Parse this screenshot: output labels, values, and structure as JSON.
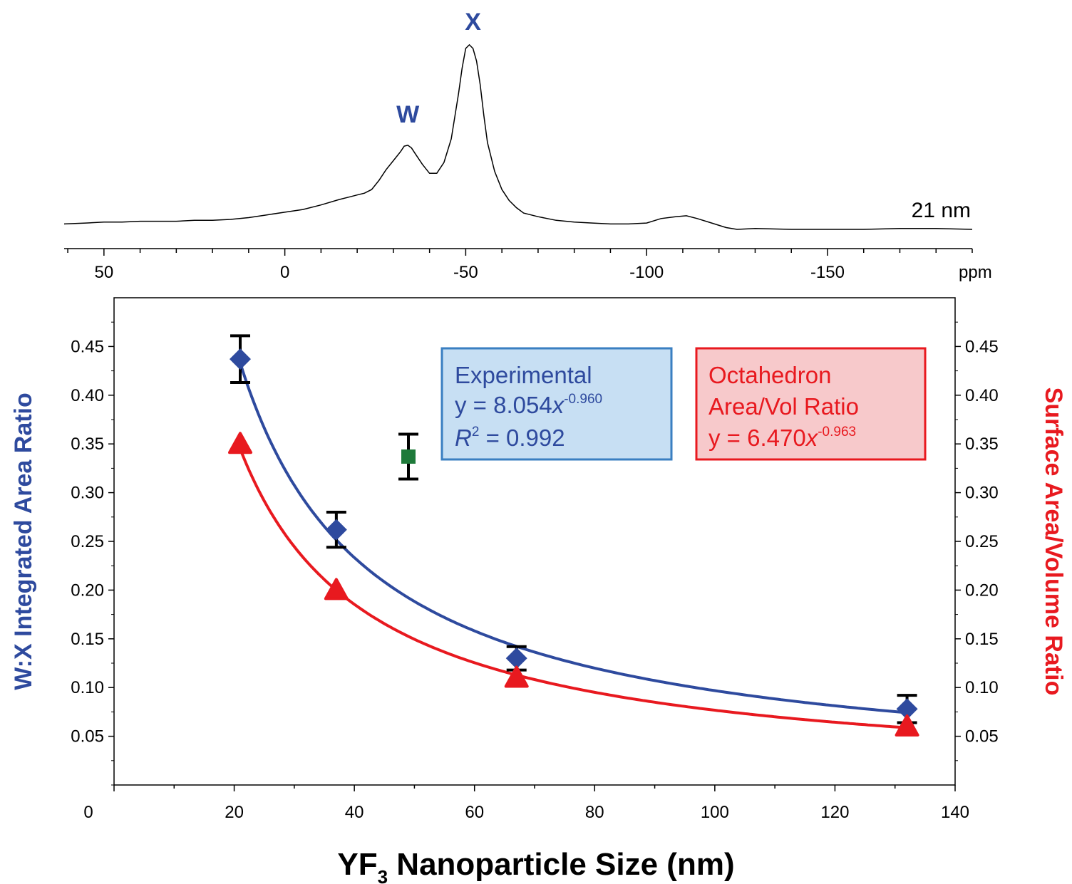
{
  "chart_data": [
    {
      "type": "line",
      "panel": "spectrum",
      "peak_labels": [
        {
          "text": "W",
          "x": -34
        },
        {
          "text": "X",
          "x": -52
        }
      ],
      "sample_label": "21 nm",
      "xlabel": "ppm",
      "xlim": [
        61,
        -190
      ],
      "x_ticks": [
        50,
        0,
        -50,
        -100,
        -150
      ],
      "x_tick_labels": [
        "50",
        "0",
        "-50",
        "-100",
        "-150"
      ],
      "spectrum": {
        "x": [
          61,
          55,
          50,
          45,
          40,
          35,
          30,
          25,
          20,
          15,
          10,
          5,
          0,
          -5,
          -10,
          -15,
          -18,
          -20,
          -22,
          -24,
          -26,
          -28,
          -30,
          -32,
          -33,
          -34,
          -35,
          -36,
          -38,
          -40,
          -42,
          -44,
          -46,
          -48,
          -49,
          -50,
          -51,
          -52,
          -53,
          -54,
          -55,
          -56,
          -58,
          -60,
          -62,
          -64,
          -66,
          -70,
          -75,
          -80,
          -85,
          -90,
          -95,
          -100,
          -104,
          -108,
          -111,
          -114,
          -118,
          -122,
          -125,
          -130,
          -140,
          -150,
          -160,
          -170,
          -180,
          -190
        ],
        "y": [
          0.03,
          0.035,
          0.04,
          0.04,
          0.045,
          0.045,
          0.045,
          0.05,
          0.05,
          0.055,
          0.065,
          0.08,
          0.095,
          0.11,
          0.135,
          0.165,
          0.18,
          0.19,
          0.2,
          0.22,
          0.27,
          0.33,
          0.38,
          0.43,
          0.46,
          0.465,
          0.45,
          0.42,
          0.36,
          0.31,
          0.31,
          0.37,
          0.5,
          0.75,
          0.89,
          1.0,
          1.02,
          1.0,
          0.93,
          0.8,
          0.63,
          0.48,
          0.32,
          0.22,
          0.16,
          0.12,
          0.09,
          0.07,
          0.05,
          0.04,
          0.035,
          0.03,
          0.03,
          0.035,
          0.06,
          0.07,
          0.075,
          0.06,
          0.035,
          0.01,
          0.0,
          0.005,
          0.0,
          0.0,
          0.0,
          0.005,
          0.005,
          0.0
        ]
      }
    },
    {
      "type": "scatter",
      "panel": "main",
      "xlabel": "YF",
      "xlabel_sub": "3",
      "xlabel_rest": " Nanoparticle Size (nm)",
      "ylabel_left": "W:X Integrated Area Ratio",
      "ylabel_right": "Surface Area/Volume Ratio",
      "xlim": [
        0,
        140
      ],
      "ylim": [
        0,
        0.5
      ],
      "x_ticks": [
        0,
        20,
        40,
        60,
        80,
        100,
        120,
        140
      ],
      "x_tick_labels": [
        "0",
        "20",
        "40",
        "60",
        "80",
        "100",
        "120",
        "140"
      ],
      "y_ticks": [
        0.05,
        0.1,
        0.15,
        0.2,
        0.25,
        0.3,
        0.35,
        0.4,
        0.45
      ],
      "y_tick_labels": [
        "0.05",
        "0.10",
        "0.15",
        "0.20",
        "0.25",
        "0.30",
        "0.35",
        "0.40",
        "0.45"
      ],
      "grid": false,
      "series": [
        {
          "color": "#2e4a9e",
          "marker": "diamond",
          "x": [
            21,
            37,
            67,
            132
          ],
          "y": [
            0.437,
            0.262,
            0.13,
            0.078
          ],
          "err": [
            0.024,
            0.018,
            0.012,
            0.014
          ],
          "fit": {
            "a": 8.054,
            "b": -0.96
          }
        },
        {
          "color": "#e8191f",
          "marker": "triangle",
          "x": [
            21,
            37,
            67,
            132
          ],
          "y": [
            0.35,
            0.2,
            0.11,
            0.06
          ],
          "fit": {
            "a": 6.47,
            "b": -0.963
          }
        },
        {
          "color": "#1e7a3a",
          "marker": "square",
          "x": [
            49
          ],
          "y": [
            0.337
          ],
          "err": [
            0.023
          ]
        }
      ],
      "legend_boxes": [
        {
          "line1": "Experimental",
          "line2_prefix": "y = 8.054",
          "line2_var": "x",
          "line2_exp": "-0.960",
          "line3_var": "R",
          "line3_sup": "2",
          "line3_rest": " = 0.992",
          "fill": "#c7dff3",
          "stroke": "#3a7fc1"
        },
        {
          "line1": "Octahedron",
          "line2": "Area/Vol Ratio",
          "line3_prefix": "y = 6.470",
          "line3_var": "x",
          "line3_exp": "-0.963",
          "fill": "#f7c9cb",
          "stroke": "#e8191f"
        }
      ]
    }
  ]
}
